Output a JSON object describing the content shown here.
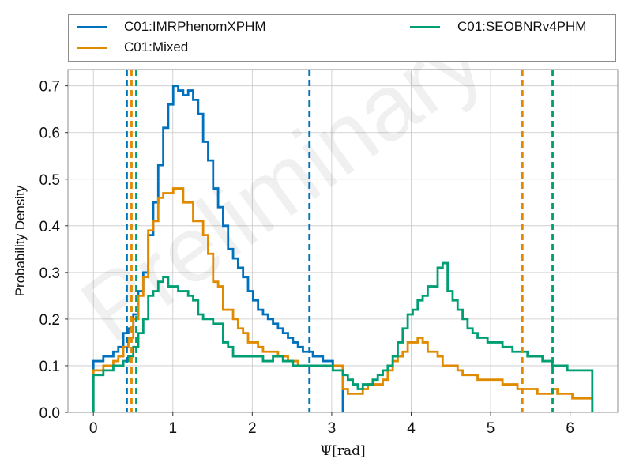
{
  "chart_data": {
    "type": "line",
    "step": true,
    "watermark": "Preliminary",
    "xlabel": "Ψ[rad]",
    "ylabel": "Probability Density",
    "xlim": [
      -0.32,
      6.6
    ],
    "ylim": [
      0,
      0.735
    ],
    "xticks": [
      0,
      1,
      2,
      3,
      4,
      5,
      6
    ],
    "xtick_labels": [
      "0",
      "1",
      "2",
      "3",
      "4",
      "5",
      "6"
    ],
    "yticks": [
      0.0,
      0.1,
      0.2,
      0.3,
      0.4,
      0.5,
      0.6,
      0.7
    ],
    "ytick_labels": [
      "0.0",
      "0.1",
      "0.2",
      "0.3",
      "0.4",
      "0.5",
      "0.6",
      "0.7"
    ],
    "grid": true,
    "legend_position": "top",
    "bin_edges_start": 0,
    "bin_width": 0.0628,
    "series": [
      {
        "name": "C01:IMRPhenomXPHM",
        "color": "#0072bd",
        "values": [
          0.11,
          0.11,
          0.12,
          0.12,
          0.13,
          0.14,
          0.17,
          0.18,
          0.21,
          0.26,
          0.3,
          0.38,
          0.45,
          0.53,
          0.61,
          0.66,
          0.7,
          0.69,
          0.68,
          0.69,
          0.67,
          0.64,
          0.58,
          0.54,
          0.48,
          0.44,
          0.4,
          0.35,
          0.33,
          0.31,
          0.29,
          0.26,
          0.24,
          0.22,
          0.21,
          0.2,
          0.19,
          0.18,
          0.17,
          0.16,
          0.15,
          0.14,
          0.13,
          0.13,
          0.12,
          0.12,
          0.11,
          0.11,
          0.1,
          0.1
        ]
      },
      {
        "name": "C01:Mixed",
        "color": "#e08a00",
        "values": [
          0.09,
          0.09,
          0.1,
          0.1,
          0.11,
          0.12,
          0.14,
          0.16,
          0.2,
          0.25,
          0.29,
          0.39,
          0.41,
          0.46,
          0.47,
          0.47,
          0.48,
          0.48,
          0.45,
          0.45,
          0.41,
          0.41,
          0.38,
          0.34,
          0.28,
          0.27,
          0.22,
          0.22,
          0.2,
          0.18,
          0.17,
          0.15,
          0.15,
          0.14,
          0.13,
          0.13,
          0.13,
          0.12,
          0.12,
          0.11,
          0.11,
          0.1,
          0.1,
          0.1,
          0.1,
          0.1,
          0.1,
          0.1,
          0.1,
          0.1,
          0.05,
          0.04,
          0.04,
          0.04,
          0.05,
          0.06,
          0.06,
          0.06,
          0.07,
          0.09,
          0.11,
          0.12,
          0.13,
          0.15,
          0.15,
          0.16,
          0.15,
          0.13,
          0.13,
          0.12,
          0.1,
          0.1,
          0.1,
          0.09,
          0.08,
          0.08,
          0.08,
          0.07,
          0.07,
          0.07,
          0.07,
          0.07,
          0.06,
          0.06,
          0.06,
          0.05,
          0.05,
          0.05,
          0.05,
          0.04,
          0.04,
          0.04,
          0.05,
          0.04,
          0.04,
          0.04,
          0.03,
          0.03,
          0.03,
          0.03
        ]
      },
      {
        "name": "C01:SEOBNRv4PHM",
        "color": "#009e73",
        "values": [
          0.08,
          0.08,
          0.09,
          0.09,
          0.1,
          0.1,
          0.11,
          0.12,
          0.14,
          0.17,
          0.2,
          0.25,
          0.26,
          0.28,
          0.29,
          0.27,
          0.27,
          0.26,
          0.26,
          0.25,
          0.24,
          0.21,
          0.2,
          0.2,
          0.19,
          0.19,
          0.15,
          0.14,
          0.12,
          0.12,
          0.12,
          0.12,
          0.12,
          0.12,
          0.11,
          0.11,
          0.12,
          0.12,
          0.11,
          0.11,
          0.1,
          0.1,
          0.1,
          0.1,
          0.1,
          0.1,
          0.1,
          0.1,
          0.09,
          0.09,
          0.08,
          0.07,
          0.06,
          0.05,
          0.06,
          0.06,
          0.07,
          0.08,
          0.09,
          0.1,
          0.12,
          0.15,
          0.18,
          0.21,
          0.22,
          0.24,
          0.25,
          0.27,
          0.27,
          0.31,
          0.32,
          0.26,
          0.24,
          0.22,
          0.2,
          0.18,
          0.17,
          0.16,
          0.16,
          0.15,
          0.15,
          0.15,
          0.14,
          0.14,
          0.13,
          0.13,
          0.13,
          0.12,
          0.12,
          0.12,
          0.11,
          0.11,
          0.1,
          0.1,
          0.1,
          0.09,
          0.09,
          0.09,
          0.09,
          0.09
        ]
      }
    ],
    "credible_bounds": [
      {
        "series": "C01:IMRPhenomXPHM",
        "color": "#0072bd",
        "x": [
          0.42,
          2.72
        ]
      },
      {
        "series": "C01:Mixed",
        "color": "#e08a00",
        "x": [
          0.48,
          5.4
        ]
      },
      {
        "series": "C01:SEOBNRv4PHM",
        "color": "#009e73",
        "x": [
          0.54,
          5.78
        ]
      }
    ]
  },
  "legend": {
    "items": [
      {
        "label": "C01:IMRPhenomXPHM",
        "color": "#0072bd"
      },
      {
        "label": "C01:Mixed",
        "color": "#e08a00"
      },
      {
        "label": "C01:SEOBNRv4PHM",
        "color": "#009e73"
      }
    ]
  }
}
